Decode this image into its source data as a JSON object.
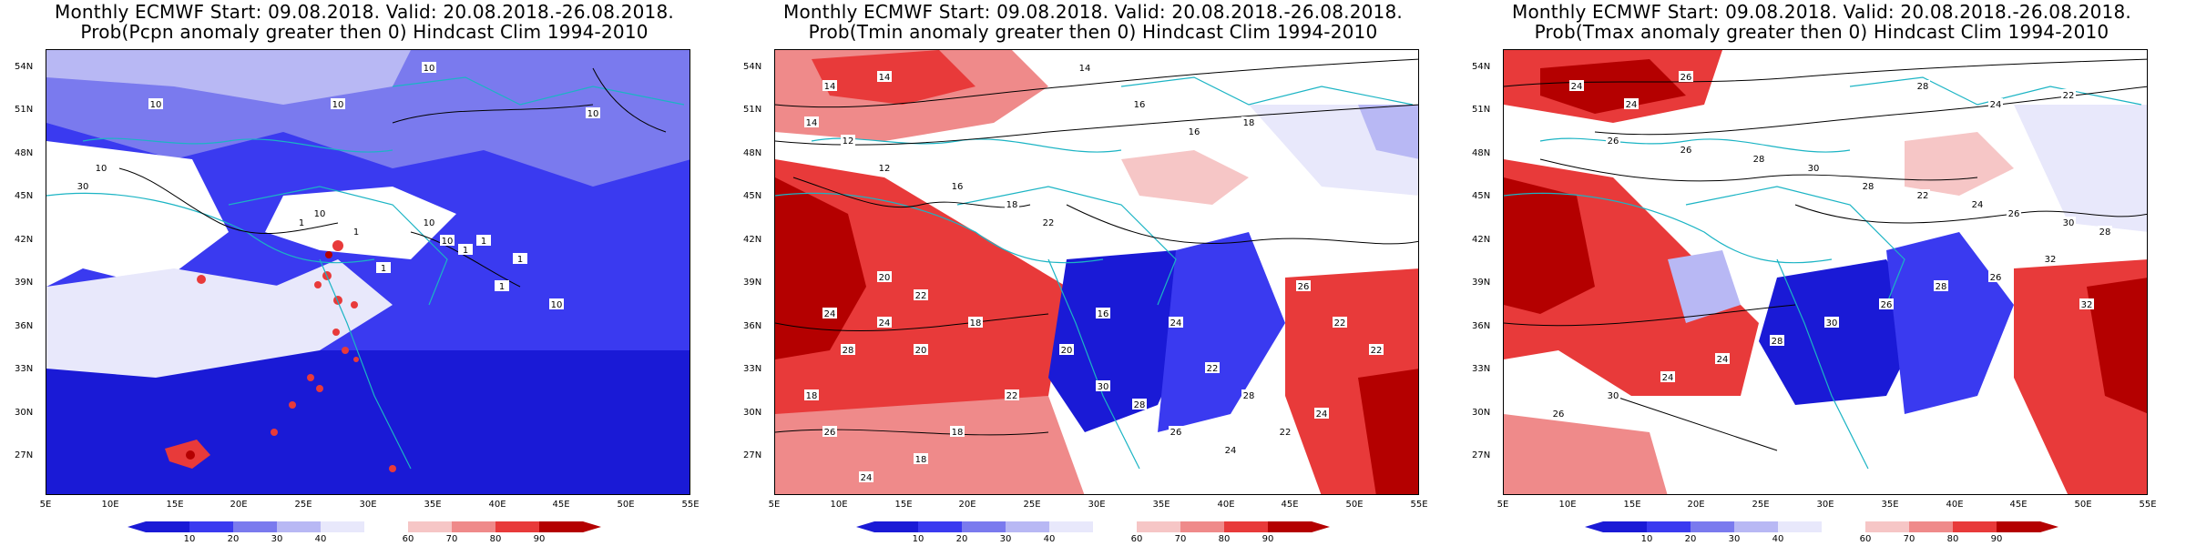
{
  "panels": [
    {
      "title_line1": "Monthly ECMWF Start: 09.08.2018. Valid: 20.08.2018.-26.08.2018.",
      "title_line2": "Prob(Pcpn anomaly greater then 0) Hindcast Clim 1994-2010",
      "contour_labels": [
        "10",
        "10",
        "10",
        "10",
        "10",
        "30",
        "10",
        "1",
        "1",
        "10",
        "10",
        "1",
        "1",
        "1",
        "1",
        "1",
        "10"
      ]
    },
    {
      "title_line1": "Monthly ECMWF Start: 09.08.2018. Valid: 20.08.2018.-26.08.2018.",
      "title_line2": "Prob(Tmin anomaly greater then 0) Hindcast Clim 1994-2010",
      "contour_labels": [
        "14",
        "14",
        "14",
        "16",
        "16",
        "18",
        "14",
        "12",
        "12",
        "16",
        "18",
        "22",
        "20",
        "24",
        "22",
        "18",
        "16",
        "24",
        "22",
        "28",
        "26",
        "22",
        "22",
        "24",
        "22",
        "24",
        "26",
        "28",
        "30",
        "20",
        "22",
        "18",
        "18",
        "24",
        "26",
        "18",
        "28",
        "24",
        "20"
      ]
    },
    {
      "title_line1": "Monthly ECMWF Start: 09.08.2018. Valid: 20.08.2018.-26.08.2018.",
      "title_line2": "Prob(Tmax anomaly greater then 0) Hindcast Clim 1994-2010",
      "contour_labels": [
        "24",
        "24",
        "26",
        "28",
        "24",
        "22",
        "26",
        "26",
        "28",
        "30",
        "28",
        "22",
        "24",
        "26",
        "30",
        "28",
        "32",
        "26",
        "28",
        "26",
        "30",
        "28",
        "24",
        "24",
        "30",
        "26",
        "32"
      ]
    }
  ],
  "axes": {
    "lat_labels": [
      "54N",
      "51N",
      "48N",
      "45N",
      "42N",
      "39N",
      "36N",
      "33N",
      "30N",
      "27N"
    ],
    "lon_labels": [
      "5E",
      "10E",
      "15E",
      "20E",
      "25E",
      "30E",
      "35E",
      "40E",
      "45E",
      "50E",
      "55E"
    ],
    "lat_range": [
      25,
      55
    ],
    "lon_range": [
      5,
      55
    ]
  },
  "colorbar": {
    "ticks": [
      "10",
      "20",
      "30",
      "40",
      "60",
      "70",
      "80",
      "90"
    ],
    "colors": [
      "#1a1ad6",
      "#3a3af0",
      "#7a7aee",
      "#b8b8f4",
      "#e8e8fb",
      "#ffffff",
      "#f6c6c6",
      "#ef8a8a",
      "#e83a3a",
      "#b40000"
    ]
  }
}
